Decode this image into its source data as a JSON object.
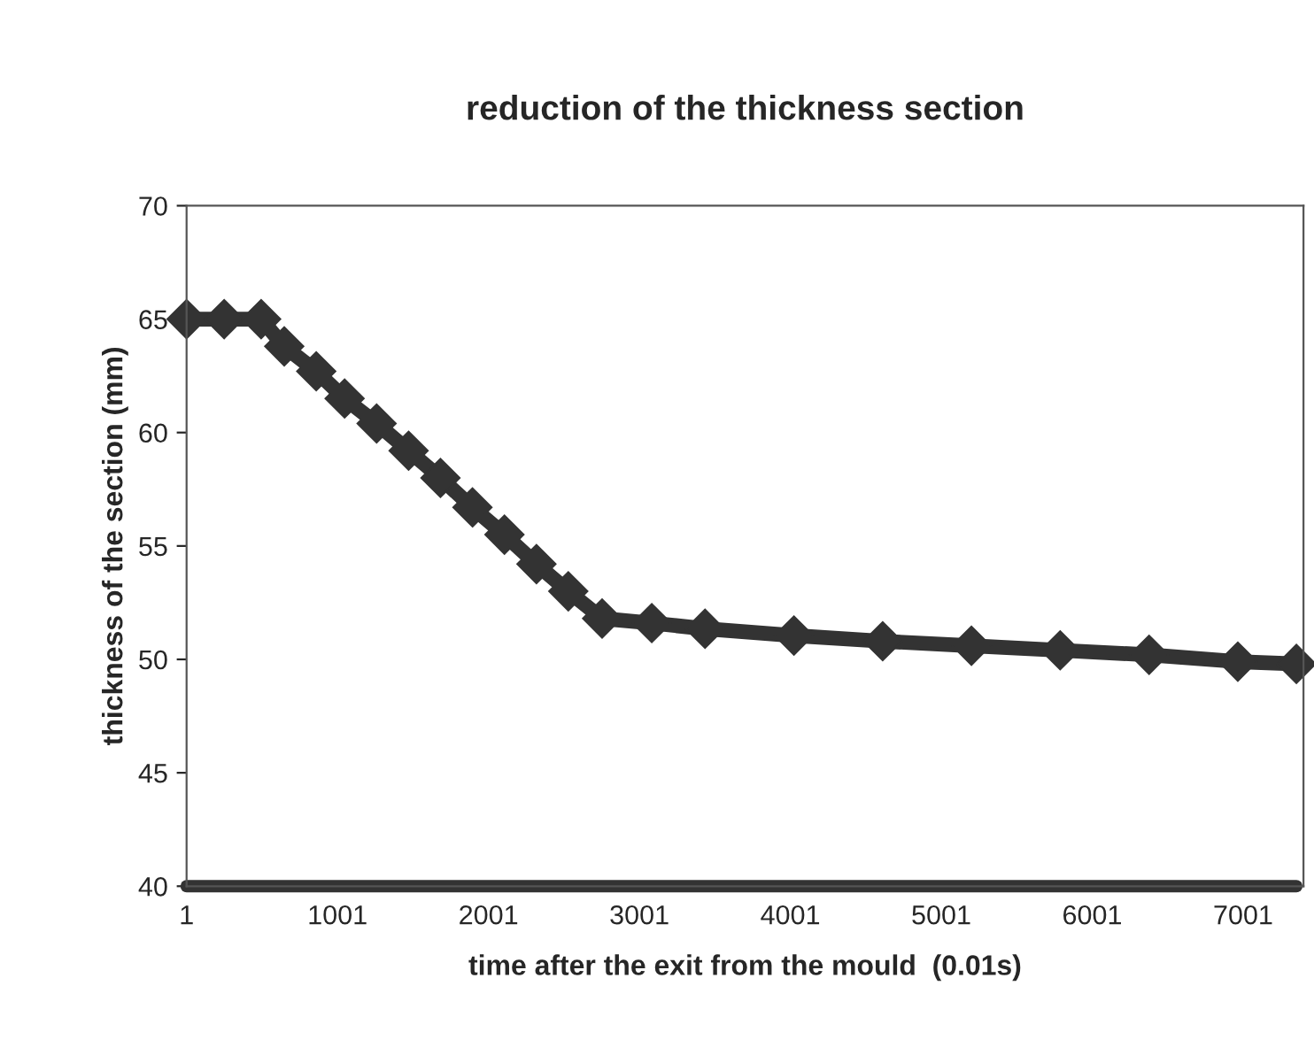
{
  "chart_data": {
    "type": "line",
    "title": "reduction of the thickness section",
    "xlabel": "time after the exit from the mould  (0.01s)",
    "ylabel": "thickness of the section (mm)",
    "series": [
      {
        "color": "#333333",
        "marker": "diamond",
        "x": [
          1,
          250,
          495,
          648,
          860,
          1048,
          1260,
          1472,
          1683,
          1895,
          2107,
          2319,
          2530,
          2754,
          3083,
          3436,
          4025,
          4613,
          5201,
          5789,
          6378,
          6966,
          7354
        ],
        "values": [
          65,
          65,
          65,
          63.8,
          62.7,
          61.5,
          60.4,
          59.2,
          58,
          56.7,
          55.5,
          54.2,
          53,
          51.8,
          51.6,
          51.35,
          51.05,
          50.8,
          50.6,
          50.4,
          50.2,
          49.9,
          49.8
        ]
      },
      {
        "color": "#333333",
        "marker": "none",
        "x": [
          1,
          7354
        ],
        "values": [
          40,
          40
        ]
      }
    ],
    "xlim": [
      1,
      7401
    ],
    "xticks": [
      1,
      1001,
      2001,
      3001,
      4001,
      5001,
      6001,
      7001
    ],
    "ylim": [
      40,
      70
    ],
    "yticks": [
      40,
      45,
      50,
      55,
      60,
      65,
      70
    ]
  }
}
